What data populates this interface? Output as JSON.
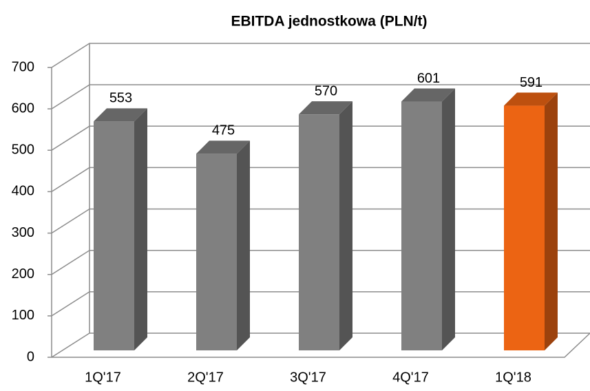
{
  "chart_data": {
    "type": "bar3d",
    "title": "EBITDA jednostkowa (PLN/t)",
    "categories": [
      "1Q'17",
      "2Q'17",
      "3Q'17",
      "4Q'17",
      "1Q'18"
    ],
    "values": [
      553,
      475,
      570,
      601,
      591
    ],
    "colors": [
      "#808080",
      "#808080",
      "#808080",
      "#808080",
      "#ec6413"
    ],
    "ylim": [
      0,
      700
    ],
    "yticks": [
      0,
      100,
      200,
      300,
      400,
      500,
      600,
      700
    ],
    "grid": true
  }
}
